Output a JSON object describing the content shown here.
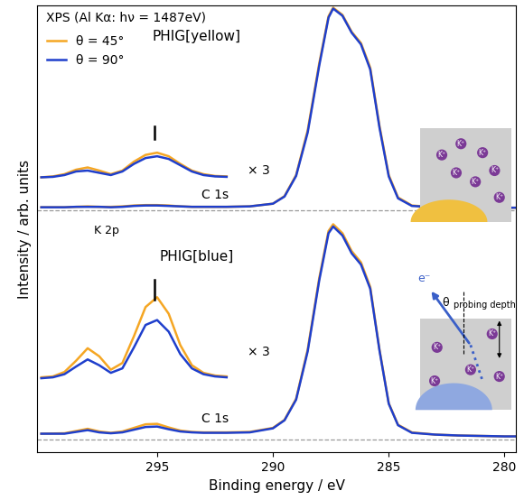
{
  "chart_data": {
    "type": "line",
    "xlabel": "Binding energy / eV",
    "ylabel": "Intensity / arb. units",
    "xlim": [
      300.2,
      279.5
    ],
    "xticks": [
      295,
      290,
      285,
      280
    ],
    "ylim": [
      0,
      10
    ],
    "tick_labels": "x",
    "grid": false,
    "legend": "upper left",
    "x": [
      300,
      299,
      298.5,
      298,
      297.5,
      297,
      296.5,
      296,
      295.5,
      295,
      294.5,
      294,
      293.5,
      293,
      292,
      291,
      290,
      289.5,
      289,
      288.5,
      288,
      287.6,
      287.4,
      287,
      286.6,
      286.2,
      285.8,
      285.4,
      285,
      284.6,
      284,
      283,
      282,
      281,
      280,
      279.5
    ],
    "series": [
      {
        "color": "#999999",
        "line_style": "dashed",
        "x": [
          300.2,
          279.5
        ],
        "values": [
          0.29,
          0.29
        ]
      },
      {
        "color": "#999999",
        "line_style": "dashed",
        "x": [
          300.2,
          279.5
        ],
        "values": [
          5.42,
          5.42
        ]
      },
      {
        "name": "θ = 45°",
        "color": "#f5a623",
        "values": [
          5.48,
          5.48,
          5.49,
          5.5,
          5.49,
          5.49,
          5.5,
          5.52,
          5.53,
          5.53,
          5.52,
          5.5,
          5.49,
          5.49,
          5.49,
          5.5,
          5.56,
          5.73,
          6.2,
          7.2,
          8.7,
          9.75,
          9.94,
          9.78,
          9.4,
          9.15,
          8.6,
          7.3,
          6.2,
          5.7,
          5.52,
          5.48,
          5.47,
          5.47,
          5.47,
          5.47
        ]
      },
      {
        "name": "θ = 90°",
        "color": "#1f3fcc",
        "values": [
          5.48,
          5.48,
          5.49,
          5.49,
          5.49,
          5.48,
          5.49,
          5.51,
          5.52,
          5.52,
          5.51,
          5.5,
          5.49,
          5.49,
          5.49,
          5.5,
          5.56,
          5.72,
          6.18,
          7.15,
          8.65,
          9.72,
          9.92,
          9.76,
          9.38,
          9.12,
          8.56,
          7.26,
          6.17,
          5.68,
          5.51,
          5.48,
          5.47,
          5.47,
          5.47,
          5.47
        ]
      },
      {
        "name": "θ = 45°",
        "color": "#f5a623",
        "values": [
          0.42,
          0.43,
          0.48,
          0.53,
          0.47,
          0.44,
          0.47,
          0.55,
          0.63,
          0.64,
          0.56,
          0.49,
          0.46,
          0.45,
          0.45,
          0.46,
          0.55,
          0.73,
          1.2,
          2.3,
          3.9,
          4.95,
          5.1,
          4.9,
          4.5,
          4.25,
          3.7,
          2.3,
          1.1,
          0.62,
          0.45,
          0.4,
          0.38,
          0.37,
          0.36,
          0.36
        ]
      },
      {
        "name": "θ = 90°",
        "color": "#1f3fcc",
        "values": [
          0.42,
          0.42,
          0.46,
          0.5,
          0.45,
          0.43,
          0.45,
          0.51,
          0.57,
          0.58,
          0.52,
          0.47,
          0.45,
          0.44,
          0.44,
          0.45,
          0.54,
          0.72,
          1.18,
          2.26,
          3.85,
          4.9,
          5.05,
          4.85,
          4.45,
          4.2,
          3.66,
          2.28,
          1.09,
          0.61,
          0.44,
          0.4,
          0.38,
          0.37,
          0.36,
          0.36
        ]
      },
      {
        "name": "θ = 45°",
        "color": "#f5a623",
        "x": [
          300,
          299.5,
          299,
          298.5,
          298,
          297.5,
          297,
          296.5,
          296,
          295.5,
          295,
          294.5,
          294,
          293.5,
          293,
          292.5,
          292
        ],
        "values": [
          6.15,
          6.17,
          6.22,
          6.32,
          6.37,
          6.3,
          6.22,
          6.3,
          6.5,
          6.65,
          6.7,
          6.62,
          6.45,
          6.3,
          6.22,
          6.18,
          6.17
        ]
      },
      {
        "name": "θ = 90°",
        "color": "#1f3fcc",
        "x": [
          300,
          299.5,
          299,
          298.5,
          298,
          297.5,
          297,
          296.5,
          296,
          295.5,
          295,
          294.5,
          294,
          293.5,
          293,
          292.5,
          292
        ],
        "values": [
          6.15,
          6.16,
          6.2,
          6.28,
          6.3,
          6.25,
          6.2,
          6.28,
          6.45,
          6.58,
          6.62,
          6.56,
          6.42,
          6.28,
          6.2,
          6.17,
          6.16
        ]
      },
      {
        "name": "θ = 45°",
        "color": "#f5a623",
        "x": [
          300,
          299.5,
          299,
          298.5,
          298,
          297.5,
          297,
          296.5,
          296,
          295.5,
          295,
          294.5,
          294,
          293.5,
          293,
          292.5,
          292
        ],
        "values": [
          1.68,
          1.7,
          1.8,
          2.05,
          2.33,
          2.15,
          1.85,
          2.0,
          2.6,
          3.25,
          3.47,
          3.1,
          2.4,
          1.95,
          1.78,
          1.72,
          1.7
        ]
      },
      {
        "name": "θ = 90°",
        "color": "#1f3fcc",
        "x": [
          300,
          299.5,
          299,
          298.5,
          298,
          297.5,
          297,
          296.5,
          296,
          295.5,
          295,
          294.5,
          294,
          293.5,
          293,
          292.5,
          292
        ],
        "values": [
          1.66,
          1.68,
          1.75,
          1.92,
          2.08,
          1.95,
          1.78,
          1.88,
          2.35,
          2.85,
          2.96,
          2.7,
          2.2,
          1.88,
          1.75,
          1.7,
          1.68
        ]
      },
      {
        "color": "#000000",
        "x": [
          295.1,
          295.1
        ],
        "values": [
          7.0,
          7.29
        ]
      },
      {
        "color": "#000000",
        "x": [
          295.1,
          295.1
        ],
        "values": [
          3.42,
          3.85
        ]
      }
    ],
    "annotations": [
      "XPS (Al Kα: hν = 1487eV)",
      "PHIG[yellow]",
      "PHIG[blue]",
      "C 1s",
      "C 1s",
      "K 2p",
      "× 3",
      "× 3"
    ],
    "inset_labels": {
      "ion": "K⁺",
      "electron": "e⁻",
      "angle": "θ",
      "depth": "probing depth"
    }
  }
}
